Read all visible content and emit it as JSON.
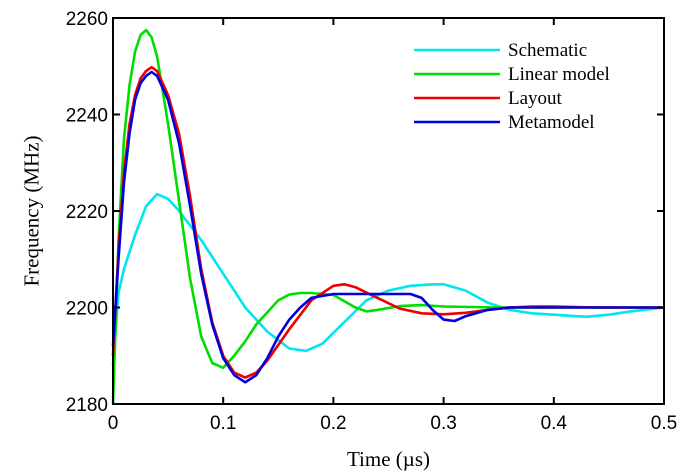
{
  "chart_data": {
    "type": "line",
    "title": "",
    "xlabel": "Time (µs)",
    "ylabel": "Frequency (MHz)",
    "xlim": [
      0,
      0.5
    ],
    "ylim": [
      2180,
      2260
    ],
    "xticks": [
      0,
      0.1,
      0.2,
      0.3,
      0.4,
      0.5
    ],
    "xtick_labels": [
      "0",
      "0.1",
      "0.2",
      "0.3",
      "0.4",
      "0.5"
    ],
    "yticks": [
      2180,
      2200,
      2220,
      2240,
      2260
    ],
    "ytick_labels": [
      "2180",
      "2200",
      "2220",
      "2240",
      "2260"
    ],
    "grid": false,
    "legend_position": "top-right",
    "series": [
      {
        "name": "Schematic",
        "color": "#00e5ee",
        "x": [
          0,
          0.005,
          0.01,
          0.02,
          0.03,
          0.04,
          0.05,
          0.06,
          0.08,
          0.1,
          0.12,
          0.14,
          0.16,
          0.175,
          0.19,
          0.21,
          0.23,
          0.25,
          0.27,
          0.29,
          0.3,
          0.32,
          0.34,
          0.36,
          0.38,
          0.4,
          0.42,
          0.43,
          0.45,
          0.47,
          0.5
        ],
        "y": [
          2188,
          2203,
          2208,
          2215,
          2221,
          2223.5,
          2222.5,
          2220,
          2214,
          2207,
          2200,
          2195,
          2191.5,
          2191,
          2192.5,
          2197,
          2201.5,
          2203.5,
          2204.5,
          2204.8,
          2204.8,
          2203.5,
          2201,
          2199.5,
          2198.8,
          2198.5,
          2198.2,
          2198.1,
          2198.5,
          2199.2,
          2200
        ]
      },
      {
        "name": "Linear model",
        "color": "#00dd00",
        "x": [
          0,
          0.005,
          0.01,
          0.015,
          0.02,
          0.025,
          0.03,
          0.035,
          0.04,
          0.05,
          0.06,
          0.07,
          0.08,
          0.09,
          0.1,
          0.11,
          0.12,
          0.13,
          0.15,
          0.16,
          0.17,
          0.18,
          0.2,
          0.22,
          0.23,
          0.24,
          0.26,
          0.28,
          0.3,
          0.35,
          0.4,
          0.45,
          0.5
        ],
        "y": [
          2180,
          2214,
          2235,
          2246,
          2253,
          2256.5,
          2257.5,
          2256,
          2252,
          2238,
          2222,
          2206,
          2194,
          2188.5,
          2187.5,
          2190,
          2193,
          2196.5,
          2201.5,
          2202.7,
          2203,
          2203,
          2202.6,
          2200,
          2199.2,
          2199.5,
          2200.3,
          2200.5,
          2200.2,
          2200,
          2200,
          2200,
          2200
        ]
      },
      {
        "name": "Layout",
        "color": "#ee0000",
        "x": [
          0,
          0.005,
          0.01,
          0.015,
          0.02,
          0.025,
          0.03,
          0.035,
          0.04,
          0.05,
          0.06,
          0.07,
          0.08,
          0.09,
          0.1,
          0.11,
          0.12,
          0.13,
          0.14,
          0.16,
          0.18,
          0.2,
          0.21,
          0.22,
          0.24,
          0.26,
          0.28,
          0.3,
          0.32,
          0.34,
          0.36,
          0.38,
          0.4,
          0.44,
          0.5
        ],
        "y": [
          2190,
          2212,
          2228,
          2238,
          2244,
          2247.5,
          2249,
          2249.8,
          2249,
          2244,
          2236,
          2223,
          2208,
          2197,
          2190,
          2186.5,
          2185.5,
          2186.5,
          2189,
          2195.5,
          2201.5,
          2204.5,
          2204.8,
          2204.2,
          2202,
          2199.8,
          2198.8,
          2198.6,
          2198.9,
          2199.5,
          2200,
          2200.2,
          2200.2,
          2200,
          2200
        ]
      },
      {
        "name": "Metamodel",
        "color": "#0000dd",
        "x": [
          0,
          0.005,
          0.01,
          0.015,
          0.02,
          0.025,
          0.03,
          0.035,
          0.04,
          0.05,
          0.06,
          0.07,
          0.08,
          0.09,
          0.1,
          0.11,
          0.12,
          0.13,
          0.14,
          0.15,
          0.16,
          0.17,
          0.18,
          0.2,
          0.22,
          0.24,
          0.26,
          0.27,
          0.28,
          0.29,
          0.3,
          0.31,
          0.32,
          0.34,
          0.36,
          0.4,
          0.45,
          0.5
        ],
        "y": [
          2192,
          2210,
          2226,
          2236,
          2243,
          2246.5,
          2248,
          2248.8,
          2248,
          2243,
          2234,
          2221,
          2207,
          2196.5,
          2189.5,
          2186,
          2184.5,
          2186,
          2189.5,
          2194,
          2197.5,
          2200,
          2202,
          2202.8,
          2202.8,
          2202.8,
          2202.8,
          2202.8,
          2202,
          2199.5,
          2197.5,
          2197.2,
          2198.2,
          2199.5,
          2200,
          2200,
          2200,
          2200
        ]
      }
    ]
  }
}
